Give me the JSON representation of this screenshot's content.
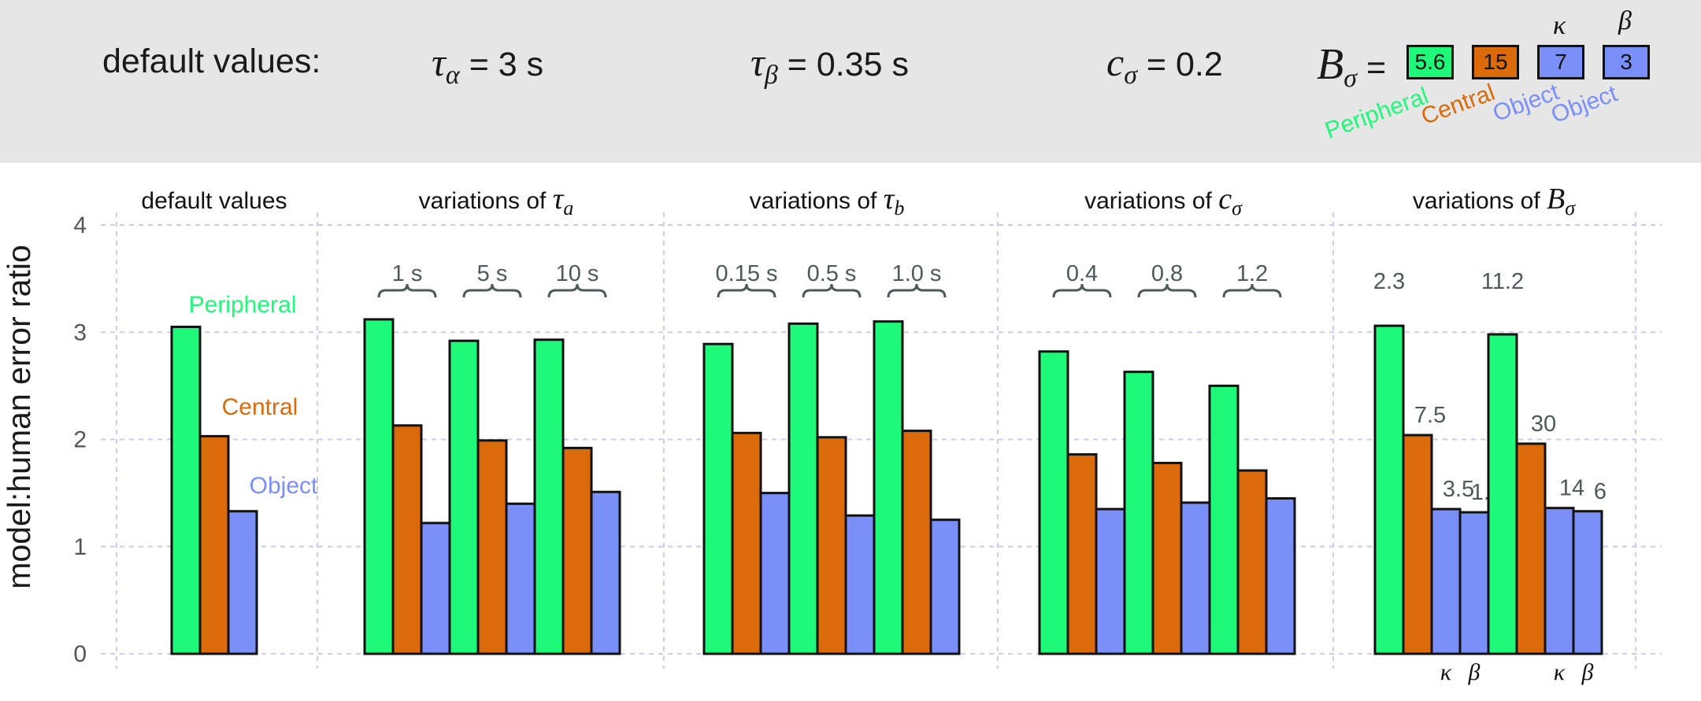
{
  "header": {
    "defaults_label": "default values:",
    "tau_alpha": {
      "symbol": "τ",
      "sub": "α",
      "value": " = 3 s"
    },
    "tau_beta": {
      "symbol": "τ",
      "sub": "β",
      "value": " = 0.35 s"
    },
    "c_sigma": {
      "symbol": "c",
      "sub": "σ",
      "value": " = 0.2"
    },
    "b_sigma": {
      "symbol": "B",
      "sub": "σ",
      "equals": " ="
    },
    "boxes": [
      {
        "value": "5.6",
        "label": "Peripheral",
        "color": "#1ef97a"
      },
      {
        "value": "15",
        "label": "Central",
        "color": "#db6a0a"
      },
      {
        "value": "7",
        "label": "Object",
        "color": "#7b8ff8",
        "greek": "κ"
      },
      {
        "value": "3",
        "label": "Object",
        "color": "#7b8ff8",
        "greek": "β"
      }
    ]
  },
  "chart_data": {
    "type": "bar",
    "ylabel": "model:human error ratio",
    "ylim": [
      0,
      4
    ],
    "yticks": [
      "0",
      "1",
      "2",
      "3",
      "4"
    ],
    "grid": true,
    "colors": {
      "Peripheral": "#1ef97a",
      "Central": "#db6a0a",
      "Object": "#7b8ff8"
    },
    "panels": [
      {
        "title": "default values",
        "groups": [
          {
            "label": "",
            "bars": [
              {
                "series": "Peripheral",
                "value": 3.05
              },
              {
                "series": "Central",
                "value": 2.03
              },
              {
                "series": "Object",
                "value": 1.33
              }
            ]
          }
        ],
        "annotations": [
          {
            "text": "Peripheral",
            "color": "#1ef97a"
          },
          {
            "text": "Central",
            "color": "#db6a0a"
          },
          {
            "text": "Object",
            "color": "#7b8ff8"
          }
        ]
      },
      {
        "title": "variations of ",
        "title_symbol": "τ",
        "title_sub": "a",
        "groups": [
          {
            "label": "1 s",
            "bars": [
              {
                "series": "Peripheral",
                "value": 3.12
              },
              {
                "series": "Central",
                "value": 2.13
              },
              {
                "series": "Object",
                "value": 1.22
              }
            ]
          },
          {
            "label": "5 s",
            "bars": [
              {
                "series": "Peripheral",
                "value": 2.92
              },
              {
                "series": "Central",
                "value": 1.99
              },
              {
                "series": "Object",
                "value": 1.4
              }
            ]
          },
          {
            "label": "10 s",
            "bars": [
              {
                "series": "Peripheral",
                "value": 2.93
              },
              {
                "series": "Central",
                "value": 1.92
              },
              {
                "series": "Object",
                "value": 1.51
              }
            ]
          }
        ]
      },
      {
        "title": "variations of ",
        "title_symbol": "τ",
        "title_sub": "b",
        "groups": [
          {
            "label": "0.15 s",
            "bars": [
              {
                "series": "Peripheral",
                "value": 2.89
              },
              {
                "series": "Central",
                "value": 2.06
              },
              {
                "series": "Object",
                "value": 1.5
              }
            ]
          },
          {
            "label": "0.5 s",
            "bars": [
              {
                "series": "Peripheral",
                "value": 3.08
              },
              {
                "series": "Central",
                "value": 2.02
              },
              {
                "series": "Object",
                "value": 1.29
              }
            ]
          },
          {
            "label": "1.0 s",
            "bars": [
              {
                "series": "Peripheral",
                "value": 3.1
              },
              {
                "series": "Central",
                "value": 2.08
              },
              {
                "series": "Object",
                "value": 1.25
              }
            ]
          }
        ]
      },
      {
        "title": "variations of ",
        "title_symbol": "c",
        "title_sub": "σ",
        "groups": [
          {
            "label": "0.4",
            "bars": [
              {
                "series": "Peripheral",
                "value": 2.82
              },
              {
                "series": "Central",
                "value": 1.86
              },
              {
                "series": "Object",
                "value": 1.35
              }
            ]
          },
          {
            "label": "0.8",
            "bars": [
              {
                "series": "Peripheral",
                "value": 2.63
              },
              {
                "series": "Central",
                "value": 1.78
              },
              {
                "series": "Object",
                "value": 1.41
              }
            ]
          },
          {
            "label": "1.2",
            "bars": [
              {
                "series": "Peripheral",
                "value": 2.5
              },
              {
                "series": "Central",
                "value": 1.71
              },
              {
                "series": "Object",
                "value": 1.45
              }
            ]
          }
        ]
      },
      {
        "title": "variations of ",
        "title_symbol": "B",
        "title_sub": "σ",
        "groups": [
          {
            "label": "",
            "bars": [
              {
                "series": "Peripheral",
                "value": 3.06,
                "label": "2.3",
                "label_pos": "top"
              },
              {
                "series": "Central",
                "value": 2.04,
                "label": "7.5"
              },
              {
                "series": "Object",
                "value": 1.35,
                "label": "3.5",
                "greek": "κ"
              },
              {
                "series": "Object",
                "value": 1.32,
                "label": "1.5",
                "greek": "β"
              }
            ]
          },
          {
            "label": "",
            "bars": [
              {
                "series": "Peripheral",
                "value": 2.98,
                "label": "11.2",
                "label_pos": "top"
              },
              {
                "series": "Central",
                "value": 1.96,
                "label": "30"
              },
              {
                "series": "Object",
                "value": 1.36,
                "label": "14",
                "greek": "κ"
              },
              {
                "series": "Object",
                "value": 1.33,
                "label": "6",
                "greek": "β"
              }
            ]
          }
        ]
      }
    ]
  }
}
